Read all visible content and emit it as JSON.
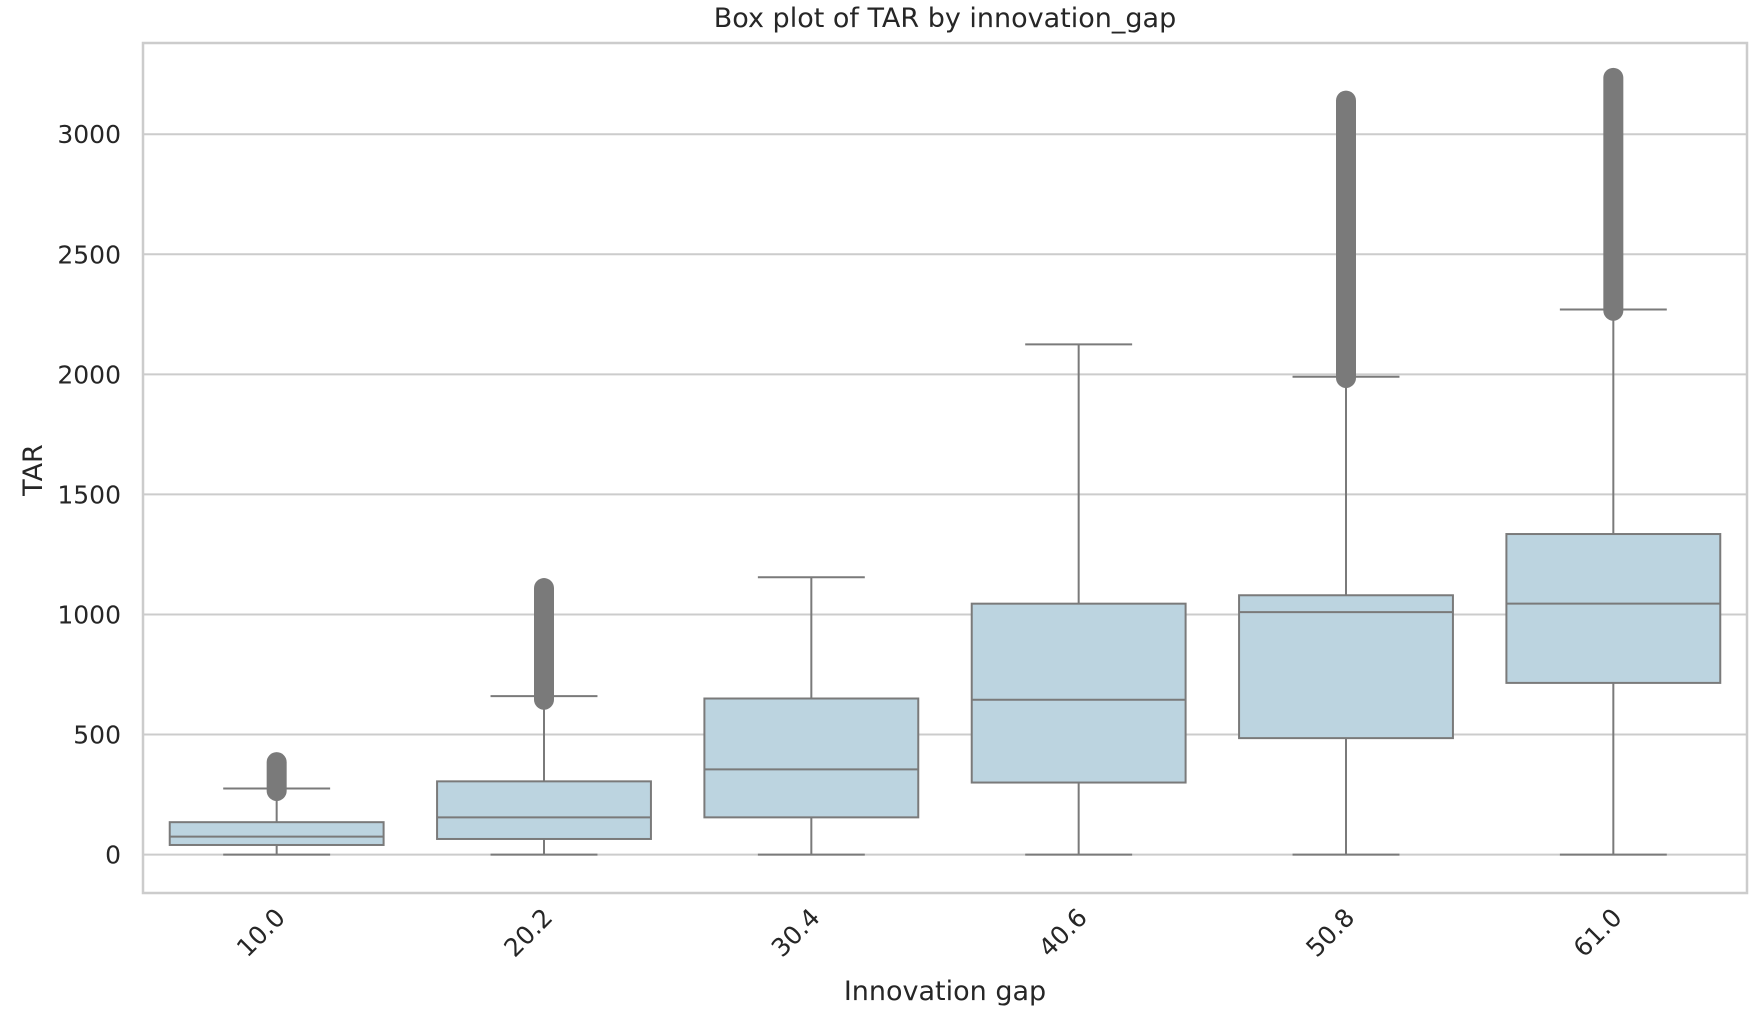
{
  "chart_data": {
    "type": "box",
    "title": "Box plot of TAR by innovation_gap",
    "xlabel": "Innovation gap",
    "ylabel": "TAR",
    "categories": [
      "10.0",
      "20.2",
      "30.4",
      "40.6",
      "50.8",
      "61.0"
    ],
    "yticks": [
      "0",
      "500",
      "1000",
      "1500",
      "2000",
      "2500",
      "3000"
    ],
    "ylim": [
      -160,
      3380
    ],
    "grid": true,
    "legend": "none",
    "box_color": "#bcd4e0",
    "line_color": "#7a7a7a",
    "outlier_color": "#7a7a7a",
    "boxes": [
      {
        "category": "10.0",
        "whisker_low": 0,
        "q1": 40,
        "median": 75,
        "q3": 135,
        "whisker_high": 275,
        "outlier_low": 265,
        "outlier_high": 385
      },
      {
        "category": "20.2",
        "whisker_low": 0,
        "q1": 65,
        "median": 155,
        "q3": 305,
        "whisker_high": 660,
        "outlier_low": 645,
        "outlier_high": 1110
      },
      {
        "category": "30.4",
        "whisker_low": 0,
        "q1": 155,
        "median": 355,
        "q3": 650,
        "whisker_high": 1155,
        "outlier_low": null,
        "outlier_high": null
      },
      {
        "category": "40.6",
        "whisker_low": 0,
        "q1": 300,
        "median": 645,
        "q3": 1045,
        "whisker_high": 2125,
        "outlier_low": null,
        "outlier_high": null
      },
      {
        "category": "50.8",
        "whisker_low": 0,
        "q1": 485,
        "median": 1010,
        "q3": 1080,
        "whisker_high": 1990,
        "outlier_low": 1985,
        "outlier_high": 3140
      },
      {
        "category": "61.0",
        "whisker_low": 0,
        "q1": 715,
        "median": 1045,
        "q3": 1335,
        "whisker_high": 2270,
        "outlier_low": 2265,
        "outlier_high": 3235
      }
    ]
  }
}
